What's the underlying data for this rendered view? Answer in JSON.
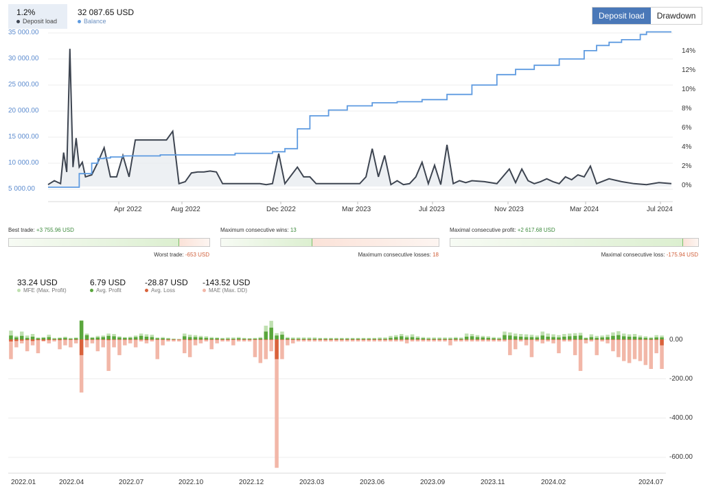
{
  "legend": {
    "deposit_load_value": "1.2%",
    "deposit_load_label": "Deposit load",
    "balance_value": "32 087.65 USD",
    "balance_label": "Balance",
    "colors": {
      "deposit": "#3d4450",
      "balance": "#5d9ae0"
    }
  },
  "toggle": {
    "deposit_load": "Deposit load",
    "drawdown": "Drawdown",
    "active": "deposit_load"
  },
  "stats": {
    "best_trade_label": "Best trade:",
    "best_trade_value": "+3 755.96 USD",
    "worst_trade_label": "Worst trade:",
    "worst_trade_value": "-653 USD",
    "max_wins_label": "Maximum consecutive wins:",
    "max_wins_value": "13",
    "max_losses_label": "Maximum consecutive losses:",
    "max_losses_value": "18",
    "max_profit_label": "Maximal consecutive profit:",
    "max_profit_value": "+2 617.68 USD",
    "max_loss_label": "Maximal consecutive loss:",
    "max_loss_value": "-175.94 USD",
    "best_vs_worst_fraction": 0.85,
    "wins_vs_losses_fraction": 0.42,
    "profit_vs_loss_fraction": 0.94
  },
  "metrics": {
    "mfe_value": "33.24 USD",
    "mfe_label": "MFE (Max. Profit)",
    "avg_profit_value": "6.79 USD",
    "avg_profit_label": "Avg. Profit",
    "avg_loss_value": "-28.87 USD",
    "avg_loss_label": "Avg. Loss",
    "mae_value": "-143.52 USD",
    "mae_label": "MAE (Max. DD)",
    "colors": {
      "mfe": "#bfe0b0",
      "avg_profit": "#5aa63c",
      "avg_loss": "#d9623b",
      "mae": "#f2b7a8"
    }
  },
  "chart_data": [
    {
      "type": "line",
      "left_axis_ticks": [
        "35 000.00",
        "30 000.00",
        "25 000.00",
        "20 000.00",
        "15 000.00",
        "10 000.00",
        "5 000.00"
      ],
      "right_axis_ticks": [
        "14%",
        "12%",
        "10%",
        "8%",
        "6%",
        "4%",
        "2%",
        "0%"
      ],
      "x_tick_labels": [
        "Apr 2022",
        "Aug 2022",
        "Dec 2022",
        "Mar 2023",
        "Jul 2023",
        "Nov 2023",
        "Mar 2024",
        "Jul 2024"
      ],
      "ylim_left": [
        5000,
        35000
      ],
      "ylim_right": [
        0,
        14
      ],
      "series": [
        {
          "name": "Balance",
          "axis": "left",
          "x": [
            0,
            0.04,
            0.05,
            0.07,
            0.08,
            0.09,
            0.1,
            0.12,
            0.18,
            0.22,
            0.3,
            0.36,
            0.38,
            0.4,
            0.42,
            0.45,
            0.48,
            0.52,
            0.56,
            0.6,
            0.64,
            0.68,
            0.72,
            0.75,
            0.78,
            0.82,
            0.86,
            0.88,
            0.9,
            0.92,
            0.95,
            0.96,
            1.0
          ],
          "values": [
            5000,
            5000,
            7600,
            9600,
            10500,
            10600,
            10800,
            11000,
            11200,
            11200,
            11500,
            11800,
            12400,
            16200,
            18700,
            19800,
            20600,
            21200,
            21400,
            21800,
            22800,
            24600,
            26600,
            27600,
            28400,
            29600,
            31200,
            32200,
            32800,
            33300,
            34300,
            34800,
            34800
          ]
        },
        {
          "name": "Deposit load",
          "axis": "right",
          "x": [
            0,
            0.01,
            0.02,
            0.025,
            0.03,
            0.035,
            0.04,
            0.045,
            0.05,
            0.055,
            0.06,
            0.07,
            0.08,
            0.09,
            0.1,
            0.11,
            0.12,
            0.13,
            0.14,
            0.15,
            0.17,
            0.19,
            0.2,
            0.21,
            0.22,
            0.23,
            0.24,
            0.25,
            0.26,
            0.27,
            0.28,
            0.3,
            0.32,
            0.34,
            0.35,
            0.36,
            0.37,
            0.38,
            0.4,
            0.41,
            0.42,
            0.43,
            0.44,
            0.45,
            0.46,
            0.47,
            0.48,
            0.49,
            0.5,
            0.51,
            0.52,
            0.53,
            0.54,
            0.55,
            0.56,
            0.57,
            0.58,
            0.59,
            0.6,
            0.61,
            0.62,
            0.63,
            0.64,
            0.65,
            0.66,
            0.67,
            0.68,
            0.7,
            0.72,
            0.74,
            0.75,
            0.76,
            0.77,
            0.78,
            0.79,
            0.8,
            0.81,
            0.82,
            0.83,
            0.84,
            0.85,
            0.86,
            0.87,
            0.88,
            0.9,
            0.92,
            0.94,
            0.96,
            0.98,
            1.0
          ],
          "values": [
            0.2,
            0.6,
            0.3,
            3.5,
            1.5,
            14.2,
            2.0,
            5.0,
            2.0,
            2.5,
            1.0,
            1.2,
            2.5,
            4.0,
            1.0,
            1.0,
            3.2,
            1.0,
            4.8,
            4.8,
            4.8,
            4.8,
            5.7,
            0.3,
            0.5,
            1.4,
            1.5,
            1.5,
            1.6,
            1.5,
            0.3,
            0.3,
            0.3,
            0.3,
            0.2,
            0.3,
            3.4,
            0.3,
            2.0,
            1.0,
            1.0,
            0.3,
            0.3,
            0.3,
            0.3,
            0.3,
            0.3,
            0.3,
            0.3,
            1.0,
            3.9,
            1.0,
            3.2,
            0.2,
            0.6,
            0.2,
            0.3,
            1.0,
            2.5,
            0.3,
            2.2,
            0.2,
            4.3,
            0.3,
            0.6,
            0.4,
            0.6,
            0.5,
            0.3,
            1.8,
            0.4,
            1.8,
            0.6,
            0.3,
            0.5,
            0.8,
            0.5,
            0.3,
            1.0,
            0.7,
            1.2,
            1.0,
            2.1,
            0.3,
            0.8,
            0.5,
            0.3,
            0.2,
            0.4,
            0.3
          ]
        }
      ]
    },
    {
      "type": "bar",
      "y_tick_labels": [
        "0.00",
        "-200.00",
        "-400.00",
        "-600.00"
      ],
      "ylim": [
        -653,
        100
      ],
      "x_tick_labels": [
        "2022.01",
        "2022.04",
        "2022.07",
        "2022.10",
        "2022.12",
        "2023.03",
        "2023.06",
        "2023.09",
        "2023.11",
        "2024.02",
        "2024.07"
      ],
      "series": [
        {
          "name": "MFE (Max. Profit)",
          "values": [
            45,
            18,
            40,
            20,
            28,
            10,
            12,
            24,
            8,
            10,
            14,
            8,
            10,
            98,
            30,
            12,
            18,
            20,
            30,
            28,
            16,
            12,
            14,
            20,
            30,
            26,
            24,
            10,
            12,
            8,
            4,
            2,
            30,
            24,
            22,
            18,
            16,
            12,
            10,
            8,
            10,
            10,
            12,
            8,
            6,
            8,
            12,
            70,
            95,
            32,
            40,
            12,
            10,
            10,
            10,
            10,
            10,
            8,
            8,
            8,
            8,
            8,
            8,
            8,
            8,
            8,
            8,
            8,
            10,
            10,
            18,
            22,
            28,
            20,
            26,
            16,
            12,
            10,
            10,
            10,
            10,
            10,
            12,
            10,
            30,
            28,
            22,
            18,
            16,
            12,
            10,
            40,
            36,
            30,
            28,
            26,
            24,
            20,
            40,
            30,
            26,
            22,
            28,
            30,
            32,
            34,
            10,
            26,
            18,
            20,
            24,
            36,
            42,
            30,
            26,
            28,
            20,
            16,
            12,
            22,
            20
          ]
        },
        {
          "name": "Avg. Profit",
          "values": [
            20,
            10,
            18,
            8,
            14,
            6,
            8,
            12,
            4,
            6,
            8,
            4,
            6,
            95,
            22,
            8,
            10,
            12,
            18,
            16,
            10,
            8,
            8,
            12,
            18,
            14,
            12,
            6,
            6,
            4,
            2,
            1,
            16,
            12,
            12,
            10,
            8,
            6,
            6,
            4,
            4,
            4,
            6,
            4,
            4,
            4,
            6,
            40,
            60,
            20,
            24,
            6,
            4,
            4,
            4,
            4,
            4,
            4,
            4,
            4,
            4,
            4,
            4,
            4,
            4,
            4,
            4,
            4,
            4,
            4,
            8,
            12,
            16,
            10,
            12,
            8,
            6,
            4,
            4,
            4,
            4,
            4,
            6,
            4,
            14,
            16,
            12,
            10,
            8,
            6,
            4,
            22,
            20,
            16,
            14,
            12,
            12,
            10,
            20,
            14,
            12,
            10,
            14,
            16,
            18,
            20,
            6,
            12,
            8,
            10,
            12,
            18,
            22,
            16,
            14,
            14,
            10,
            8,
            6,
            10,
            10
          ]
        },
        {
          "name": "Avg. Loss",
          "values": [
            -10,
            -8,
            -6,
            -4,
            -8,
            -4,
            -6,
            -4,
            -2,
            -4,
            -2,
            -2,
            -2,
            -80,
            -4,
            -2,
            -2,
            -2,
            -4,
            -2,
            -2,
            -2,
            -2,
            -2,
            -2,
            -4,
            -2,
            -2,
            -2,
            -2,
            -2,
            -2,
            -2,
            -4,
            -2,
            -2,
            -2,
            -2,
            -2,
            -2,
            -2,
            -2,
            -2,
            -2,
            -2,
            -2,
            -2,
            -2,
            -2,
            -100,
            -2,
            -2,
            -2,
            -2,
            -2,
            -2,
            -2,
            -2,
            -2,
            -2,
            -2,
            -2,
            -2,
            -2,
            -2,
            -2,
            -2,
            -2,
            -2,
            -2,
            -2,
            -2,
            -2,
            -2,
            -2,
            -2,
            -2,
            -2,
            -2,
            -2,
            -2,
            -2,
            -2,
            -2,
            -2,
            -2,
            -2,
            -2,
            -2,
            -2,
            -2,
            -2,
            -2,
            -2,
            -2,
            -2,
            -2,
            -2,
            -2,
            -2,
            -2,
            -2,
            -2,
            -2,
            -2,
            -2,
            -2,
            -2,
            -2,
            -2,
            -2,
            -2,
            -2,
            -2,
            -2,
            -2,
            -2,
            -2,
            -2,
            -2,
            -30
          ]
        },
        {
          "name": "MAE (Max. DD)",
          "values": [
            -100,
            -40,
            -20,
            -60,
            -30,
            -70,
            -10,
            -20,
            -10,
            -50,
            -30,
            -40,
            -20,
            -270,
            -40,
            -20,
            -60,
            -40,
            -160,
            -40,
            -80,
            -30,
            -20,
            -40,
            -10,
            -20,
            -10,
            -100,
            -30,
            -10,
            -10,
            -10,
            -70,
            -90,
            -30,
            -20,
            -10,
            -50,
            -20,
            -10,
            -10,
            -30,
            -10,
            -10,
            -10,
            -90,
            -120,
            -100,
            -60,
            -653,
            -100,
            -30,
            -20,
            -10,
            -10,
            -10,
            -10,
            -10,
            -10,
            -10,
            -10,
            -10,
            -10,
            -10,
            -10,
            -10,
            -10,
            -10,
            -10,
            -10,
            -10,
            -10,
            -10,
            -20,
            -10,
            -10,
            -10,
            -10,
            -10,
            -10,
            -10,
            -30,
            -10,
            -10,
            -10,
            -10,
            -10,
            -10,
            -10,
            -10,
            -10,
            -10,
            -80,
            -50,
            -10,
            -30,
            -90,
            -10,
            -20,
            -10,
            -20,
            -70,
            -10,
            -10,
            -80,
            -160,
            -20,
            -10,
            -80,
            -10,
            -20,
            -60,
            -90,
            -110,
            -120,
            -100,
            -110,
            -130,
            -150,
            -70,
            -150
          ]
        }
      ]
    }
  ]
}
